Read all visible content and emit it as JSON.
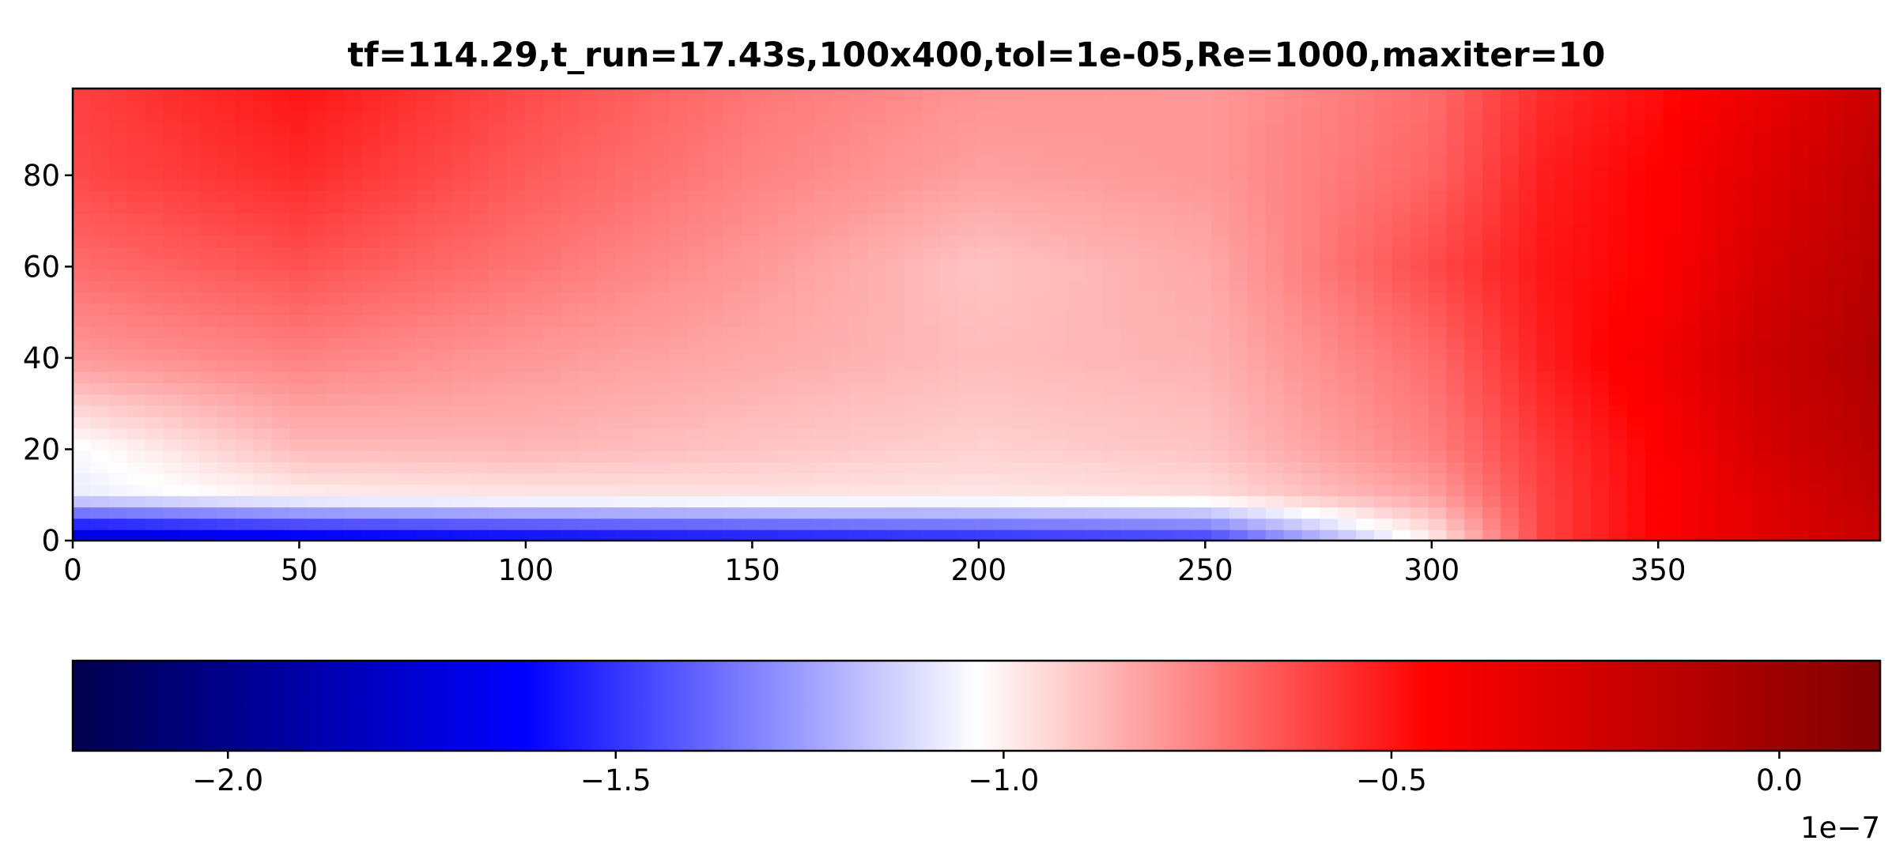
{
  "chart_data": {
    "type": "heatmap",
    "title": "tf=114.29,t_run=17.43s,100x400,tol=1e-05,Re=1000,maxiter=10",
    "xlabel": "",
    "ylabel": "",
    "xlim": [
      0,
      399
    ],
    "ylim": [
      0,
      99
    ],
    "x_ticks": [
      0,
      50,
      100,
      150,
      200,
      250,
      300,
      350
    ],
    "y_ticks": [
      0,
      20,
      40,
      60,
      80
    ],
    "grid": false,
    "colormap": "seismic",
    "colorbar": {
      "orientation": "horizontal",
      "placement": "bottom",
      "vmin": -2.2,
      "vmax": 0.13,
      "ticks": [
        -2.0,
        -1.5,
        -1.0,
        -0.5,
        0.0
      ],
      "tick_labels": [
        "−2.0",
        "−1.5",
        "−1.0",
        "−0.5",
        "0.0"
      ],
      "scale_label": "1e−7"
    },
    "field_samples": {
      "note_units": "values in units of 1e-7",
      "x": [
        0,
        50,
        100,
        150,
        200,
        250,
        300,
        325,
        350,
        375,
        399
      ],
      "y": [
        0,
        10,
        20,
        40,
        60,
        80,
        99
      ],
      "z": [
        [
          -1.8,
          -1.7,
          -1.65,
          -1.6,
          -1.55,
          -1.5,
          -1.0,
          -0.6,
          -0.45,
          -0.3,
          -0.2
        ],
        [
          -1.08,
          -1.0,
          -0.98,
          -0.97,
          -0.98,
          -0.96,
          -0.82,
          -0.6,
          -0.45,
          -0.3,
          -0.15
        ],
        [
          -1.05,
          -0.88,
          -0.87,
          -0.9,
          -0.93,
          -0.9,
          -0.75,
          -0.58,
          -0.45,
          -0.25,
          -0.12
        ],
        [
          -0.8,
          -0.75,
          -0.8,
          -0.84,
          -0.88,
          -0.86,
          -0.7,
          -0.52,
          -0.4,
          -0.2,
          -0.08
        ],
        [
          -0.7,
          -0.64,
          -0.72,
          -0.8,
          -0.9,
          -0.84,
          -0.62,
          -0.5,
          -0.45,
          -0.25,
          -0.12
        ],
        [
          -0.62,
          -0.55,
          -0.66,
          -0.75,
          -0.82,
          -0.8,
          -0.68,
          -0.52,
          -0.45,
          -0.3,
          -0.15
        ],
        [
          -0.6,
          -0.5,
          -0.62,
          -0.72,
          -0.79,
          -0.8,
          -0.7,
          -0.55,
          -0.48,
          -0.35,
          -0.2
        ]
      ]
    }
  }
}
